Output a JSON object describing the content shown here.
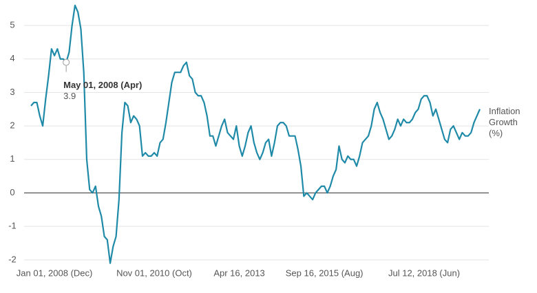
{
  "chart_data": {
    "type": "line",
    "categories": [
      null,
      null,
      null,
      null,
      null,
      null,
      null,
      null,
      "Jan 01, 2008 (Dec)",
      null,
      null,
      null,
      null,
      null,
      null,
      null,
      null,
      null,
      null,
      null,
      null,
      null,
      null,
      null,
      null,
      null,
      null,
      null,
      null,
      null,
      null,
      null,
      null,
      null,
      null,
      null,
      null,
      null,
      null,
      null,
      null,
      null,
      "Nov 01, 2010 (Oct)",
      null,
      null,
      null,
      null,
      null,
      null,
      null,
      null,
      null,
      null,
      null,
      null,
      null,
      null,
      null,
      null,
      null,
      null,
      null,
      null,
      null,
      null,
      null,
      null,
      null,
      null,
      null,
      null,
      "Apr 16, 2013",
      null,
      null,
      null,
      null,
      null,
      null,
      null,
      null,
      null,
      null,
      null,
      null,
      null,
      null,
      null,
      null,
      null,
      null,
      null,
      null,
      null,
      null,
      null,
      null,
      null,
      null,
      null,
      null,
      "Sep 16, 2015 (Aug)",
      null,
      null,
      null,
      null,
      null,
      null,
      null,
      null,
      null,
      null,
      null,
      null,
      null,
      null,
      null,
      null,
      null,
      null,
      null,
      null,
      null,
      null,
      null,
      null,
      null,
      null,
      null,
      null,
      null,
      null,
      null,
      null,
      null,
      "Jul 12, 2018 (Jun)",
      null,
      null,
      null,
      null,
      null,
      null,
      null,
      null,
      null,
      null,
      null,
      null,
      null,
      null,
      null,
      null,
      null,
      null,
      null
    ],
    "series": [
      {
        "name": "Inflation Growth (%)",
        "color": "#1f8aa8",
        "values": [
          2.6,
          2.7,
          2.7,
          2.3,
          2.0,
          2.8,
          3.5,
          4.3,
          4.1,
          4.3,
          4.0,
          4.0,
          3.9,
          4.2,
          5.0,
          5.6,
          5.4,
          4.9,
          3.6,
          1.0,
          0.1,
          0.0,
          0.2,
          -0.4,
          -0.7,
          -1.3,
          -1.4,
          -2.1,
          -1.6,
          -1.3,
          -0.2,
          1.8,
          2.7,
          2.6,
          2.1,
          2.3,
          2.2,
          2.0,
          1.1,
          1.2,
          1.1,
          1.1,
          1.2,
          1.1,
          1.5,
          1.6,
          2.1,
          2.7,
          3.3,
          3.6,
          3.6,
          3.6,
          3.8,
          3.9,
          3.5,
          3.4,
          3.0,
          2.9,
          2.9,
          2.7,
          2.3,
          1.7,
          1.7,
          1.4,
          1.7,
          2.0,
          2.2,
          1.8,
          1.7,
          1.6,
          2.0,
          1.4,
          1.1,
          1.4,
          1.8,
          2.0,
          1.5,
          1.2,
          1.0,
          1.2,
          1.5,
          1.6,
          1.1,
          1.5,
          2.0,
          2.1,
          2.1,
          2.0,
          1.7,
          1.7,
          1.7,
          1.3,
          0.8,
          -0.1,
          0.0,
          -0.1,
          -0.2,
          0.0,
          0.1,
          0.2,
          0.2,
          0.0,
          0.2,
          0.5,
          0.7,
          1.4,
          1.0,
          0.9,
          1.1,
          1.0,
          1.0,
          0.8,
          1.1,
          1.5,
          1.6,
          1.7,
          2.0,
          2.5,
          2.7,
          2.4,
          2.2,
          1.9,
          1.6,
          1.7,
          1.9,
          2.2,
          2.0,
          2.2,
          2.1,
          2.1,
          2.2,
          2.4,
          2.5,
          2.8,
          2.9,
          2.9,
          2.7,
          2.3,
          2.5,
          2.2,
          1.9,
          1.6,
          1.5,
          1.9,
          2.0,
          1.8,
          1.6,
          1.8,
          1.7,
          1.7,
          1.8,
          2.1,
          2.3,
          2.5
        ]
      }
    ],
    "annotations": [
      {
        "text": "May 01, 2008 (Apr)"
      }
    ],
    "ylim": [
      -2.25,
      5.35
    ],
    "yticks": [
      -2,
      -1,
      0,
      1,
      2,
      3,
      4,
      5
    ],
    "grid": true
  }
}
